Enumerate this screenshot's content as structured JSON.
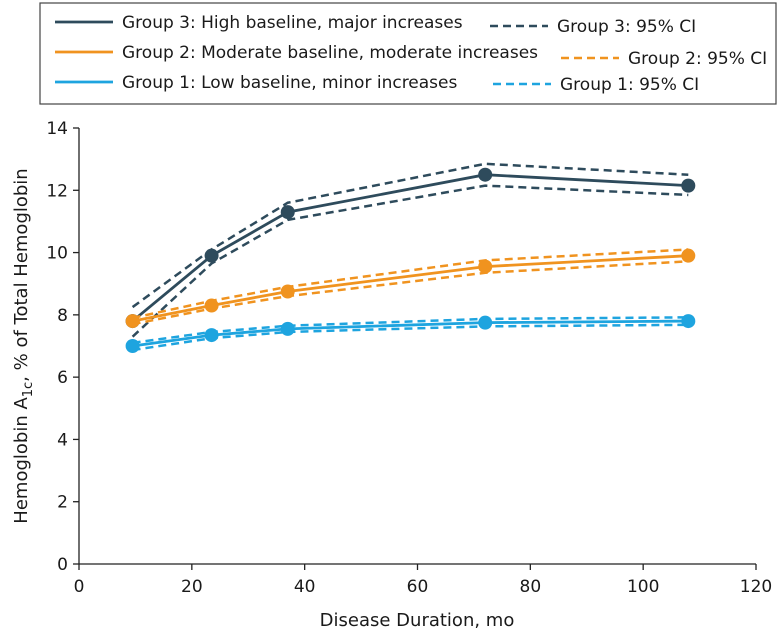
{
  "chart_data": {
    "type": "line",
    "xlabel": "Disease Duration, mo",
    "ylabel_main": "Hemoglobin A",
    "ylabel_sub": "1c",
    "ylabel_rest": ", % of Total Hemoglobin",
    "xlim": [
      0,
      120
    ],
    "ylim": [
      0,
      14
    ],
    "xticks": [
      0,
      20,
      40,
      60,
      80,
      100,
      120
    ],
    "yticks": [
      0,
      2,
      4,
      6,
      8,
      10,
      12,
      14
    ],
    "grid": false,
    "legend_position": "top",
    "x": [
      9.5,
      23.5,
      37,
      72,
      108
    ],
    "series": [
      {
        "name": "Group 3: High baseline, major increases",
        "ci_name": "Group 3: 95% CI",
        "color": "#2e4b5c",
        "values": [
          7.8,
          9.9,
          11.3,
          12.5,
          12.15
        ],
        "ci_upper": [
          8.25,
          10.1,
          11.6,
          12.85,
          12.5
        ],
        "ci_lower": [
          7.3,
          9.65,
          11.05,
          12.15,
          11.85
        ]
      },
      {
        "name": "Group 2: Moderate baseline, moderate increases",
        "ci_name": "Group 2: 95% CI",
        "color": "#f0931f",
        "values": [
          7.8,
          8.3,
          8.75,
          9.55,
          9.9
        ],
        "ci_upper": [
          7.9,
          8.45,
          8.9,
          9.75,
          10.1
        ],
        "ci_lower": [
          7.7,
          8.2,
          8.6,
          9.35,
          9.72
        ]
      },
      {
        "name": "Group 1: Low baseline, minor increases",
        "ci_name": "Group 1: 95% CI",
        "color": "#1ea4df",
        "values": [
          7.0,
          7.35,
          7.55,
          7.75,
          7.8
        ],
        "ci_upper": [
          7.1,
          7.45,
          7.65,
          7.87,
          7.92
        ],
        "ci_lower": [
          6.87,
          7.25,
          7.45,
          7.63,
          7.68
        ]
      }
    ]
  }
}
